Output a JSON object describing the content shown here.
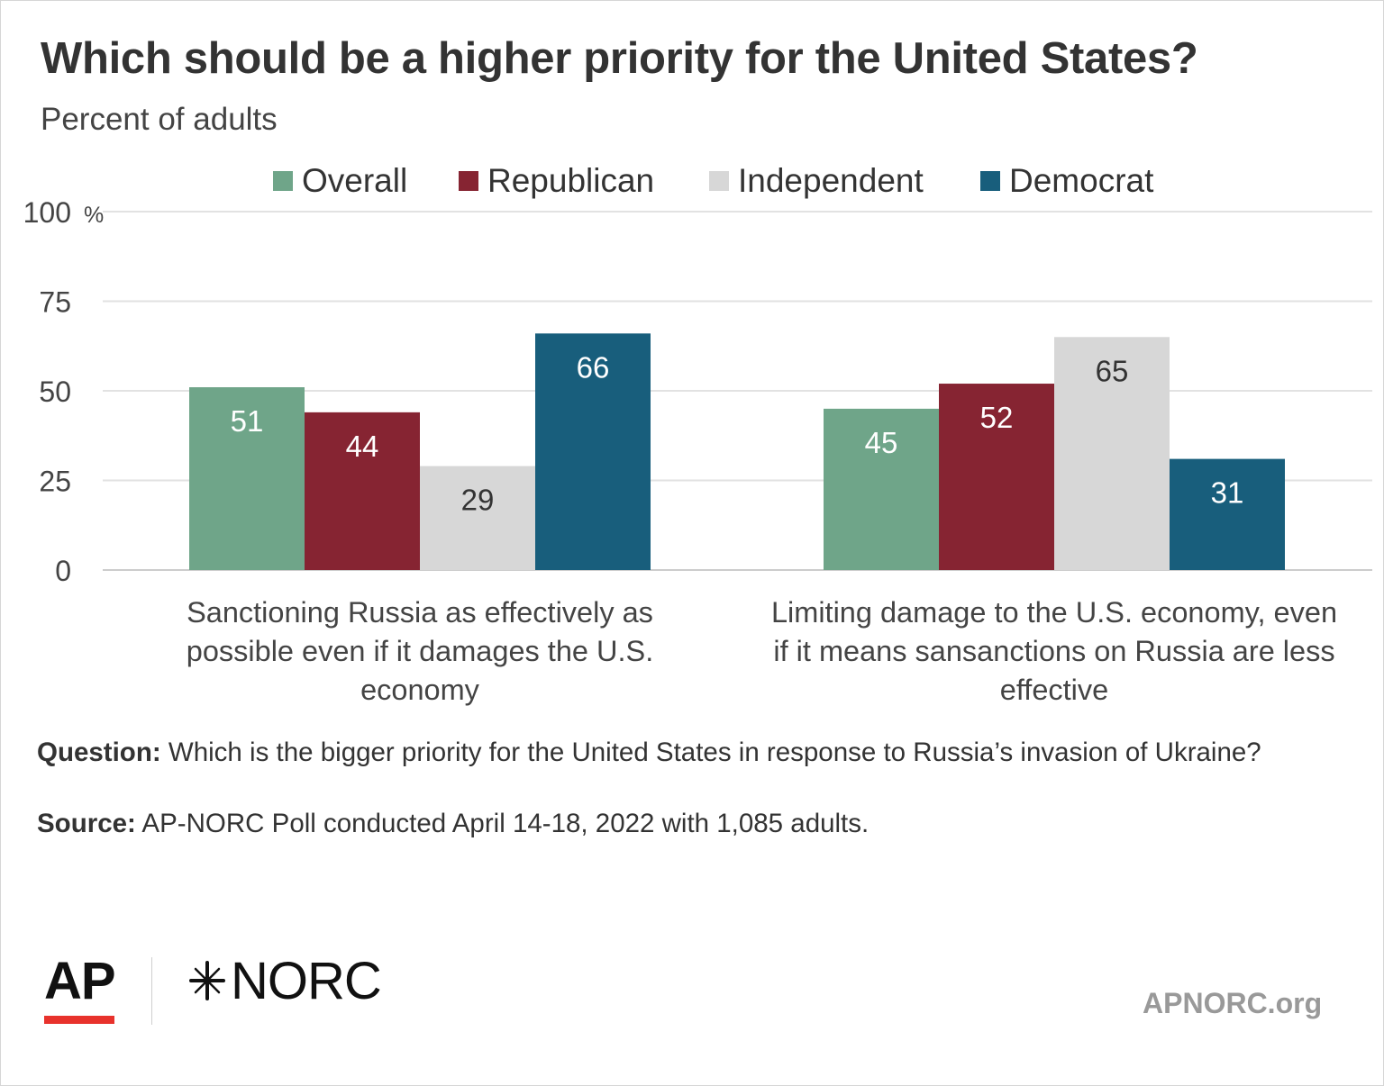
{
  "header": {
    "title": "Which should be a higher priority for the United States?",
    "subtitle": "Percent of adults"
  },
  "chart_data": {
    "type": "bar",
    "title": "Which should be a higher priority for the United States?",
    "subtitle": "Percent of adults",
    "categories": [
      "Sanctioning Russia as effectively as possible even if it damages the U.S. economy",
      "Limiting damage to the U.S. economy, even if it means sansanctions on Russia are less effective"
    ],
    "category_lines": [
      [
        "Sanctioning Russia as effectively as",
        "possible even if it damages the U.S.",
        "economy"
      ],
      [
        "Limiting damage to the U.S. economy, even",
        "if it means sansanctions on Russia are less",
        "effective"
      ]
    ],
    "series": [
      {
        "name": "Overall",
        "color": "#6fa589",
        "label_color": "#ffffff",
        "values": [
          51,
          45
        ]
      },
      {
        "name": "Republican",
        "color": "#862432",
        "label_color": "#ffffff",
        "values": [
          44,
          52
        ]
      },
      {
        "name": "Independent",
        "color": "#d7d7d7",
        "label_color": "#333333",
        "values": [
          29,
          65
        ]
      },
      {
        "name": "Democrat",
        "color": "#185e7c",
        "label_color": "#ffffff",
        "values": [
          66,
          31
        ]
      }
    ],
    "ylim": [
      0,
      100
    ],
    "yticks": [
      "0",
      "25",
      "50",
      "75",
      "100"
    ],
    "yunit": "%",
    "grid": true,
    "legend": "top"
  },
  "footer": {
    "question_label": "Question:",
    "question_text": " Which is the bigger priority for the United States in response to Russia’s invasion of Ukraine?",
    "source_label": "Source:",
    "source_text": " AP-NORC Poll conducted April 14-18, 2022 with 1,085 adults.",
    "logo_ap": "AP",
    "logo_norc": "NORC",
    "site": "APNORC.org"
  }
}
